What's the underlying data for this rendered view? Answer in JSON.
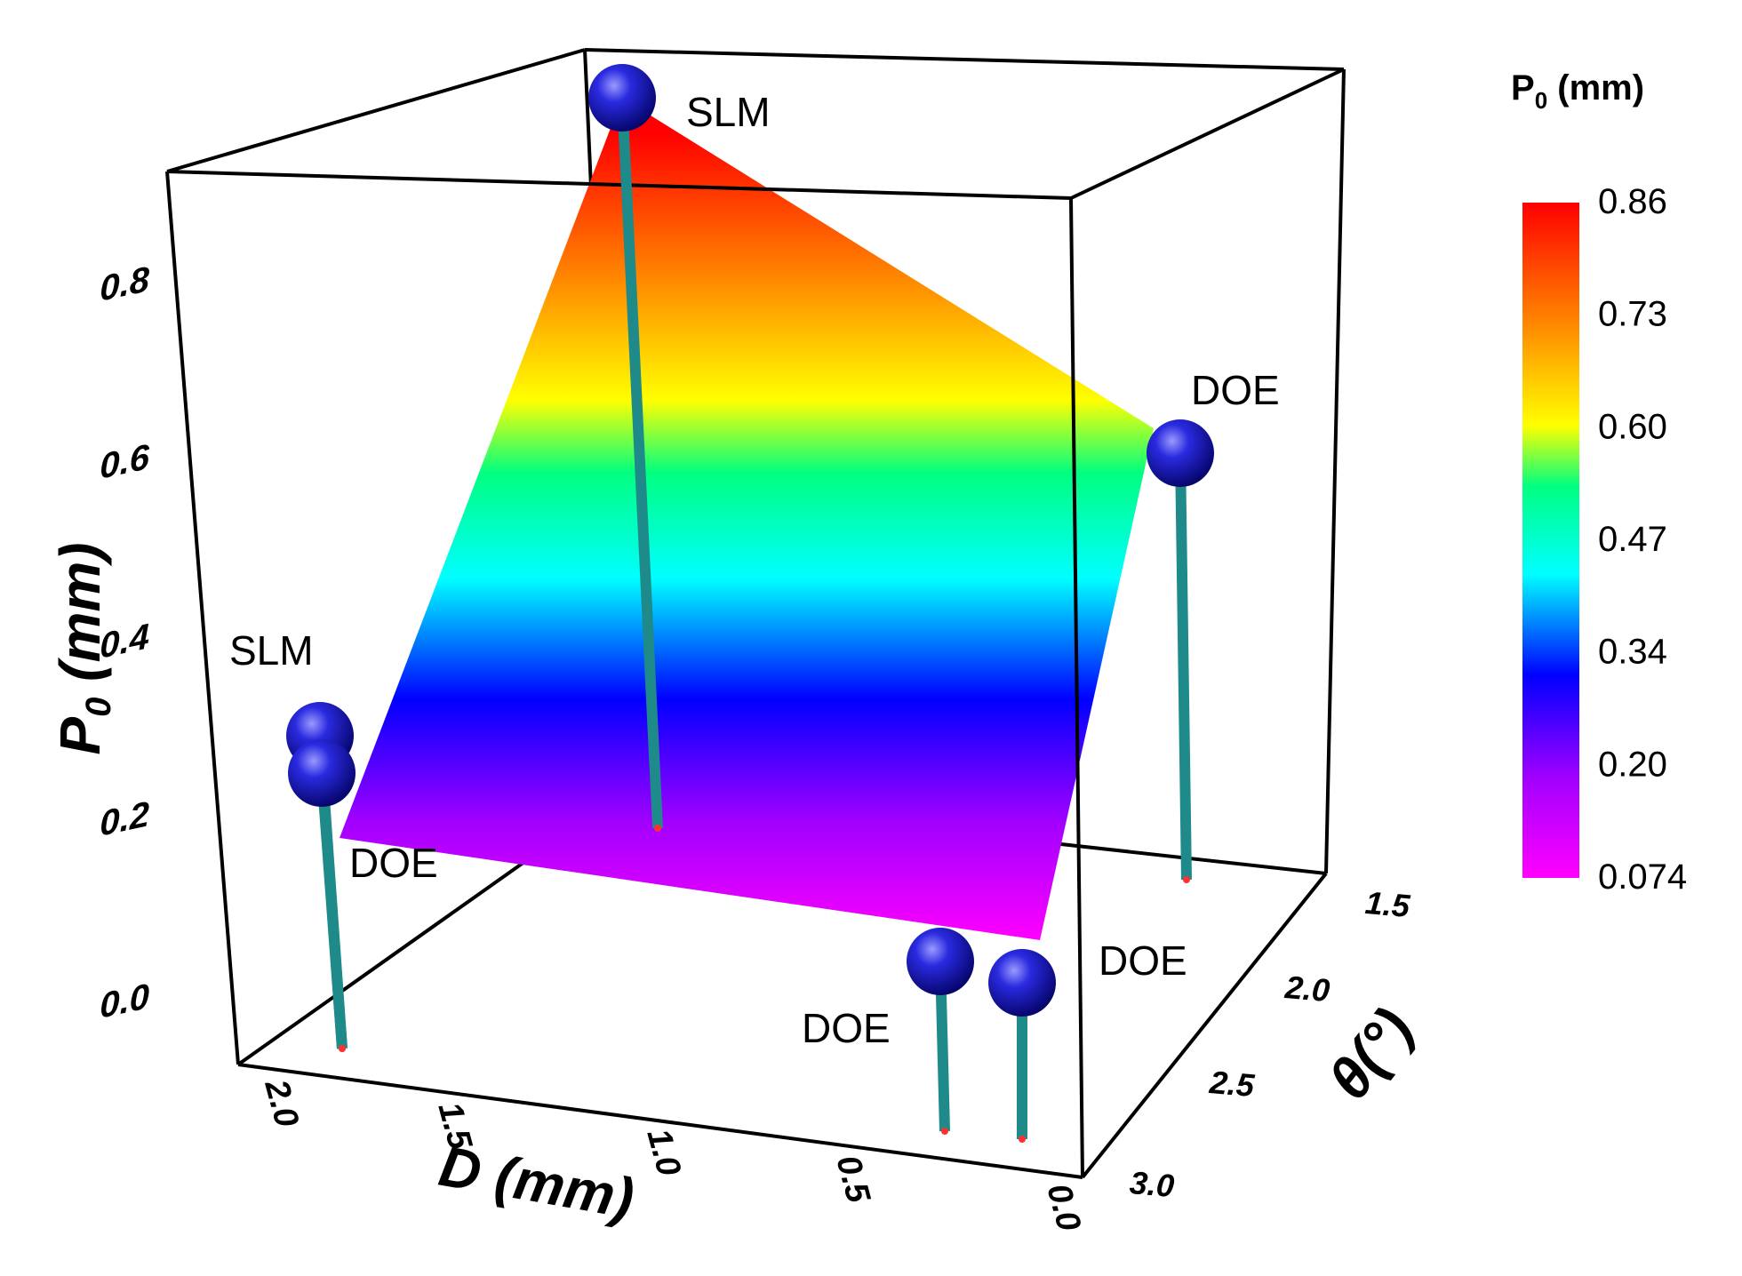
{
  "chart_data": {
    "type": "surface3d",
    "zlabel_main": "P",
    "zlabel_sub": "0",
    "zlabel_unit": " (mm)",
    "xlabel": "D (mm)",
    "ylabel_greek": "θ",
    "ylabel_unit": "(°)",
    "x_ticks": [
      "2.0",
      "1.5",
      "1.0",
      "0.5",
      "0.0"
    ],
    "y_ticks": [
      "1.5",
      "2.0",
      "2.5",
      "3.0"
    ],
    "z_ticks": [
      "0.0",
      "0.2",
      "0.4",
      "0.6",
      "0.8"
    ],
    "xlim": [
      0,
      2.0
    ],
    "ylim": [
      1.5,
      3.0
    ],
    "zlim": [
      0,
      0.86
    ],
    "surface_corners": [
      {
        "D": 1.0,
        "theta": 3.0,
        "P0": 0.86
      },
      {
        "D": 0.0,
        "theta": 1.5,
        "P0": 0.6
      },
      {
        "D": 0.0,
        "theta": 2.5,
        "P0": 0.074
      },
      {
        "D": 2.0,
        "theta": 3.0,
        "P0": 0.26
      }
    ],
    "points": [
      {
        "label": "SLM",
        "D": 1.0,
        "theta": 3.0,
        "P0": 0.86
      },
      {
        "label": "SLM",
        "D": 2.0,
        "theta": 3.0,
        "P0": 0.27
      },
      {
        "label": "DOE",
        "D": 2.0,
        "theta": 3.0,
        "P0": 0.24
      },
      {
        "label": "DOE",
        "D": 0.0,
        "theta": 1.5,
        "P0": 0.6
      },
      {
        "label": "DOE",
        "D": 0.4,
        "theta": 3.0,
        "P0": 0.08
      },
      {
        "label": "DOE",
        "D": 0.0,
        "theta": 2.5,
        "P0": 0.06
      }
    ],
    "colorbar": {
      "title_main": "P",
      "title_sub": "0",
      "title_unit": " (mm)",
      "ticks": [
        "0.86",
        "0.73",
        "0.60",
        "0.47",
        "0.34",
        "0.20",
        "0.074"
      ],
      "colors": [
        "#ff0000",
        "#ff8000",
        "#ffff00",
        "#00ff80",
        "#00ffff",
        "#0000ff",
        "#a000ff",
        "#ff00ff"
      ]
    },
    "colors": {
      "stem": "#1f8a8a",
      "sphere": "#1c1cc8",
      "frame": "#000000"
    }
  }
}
